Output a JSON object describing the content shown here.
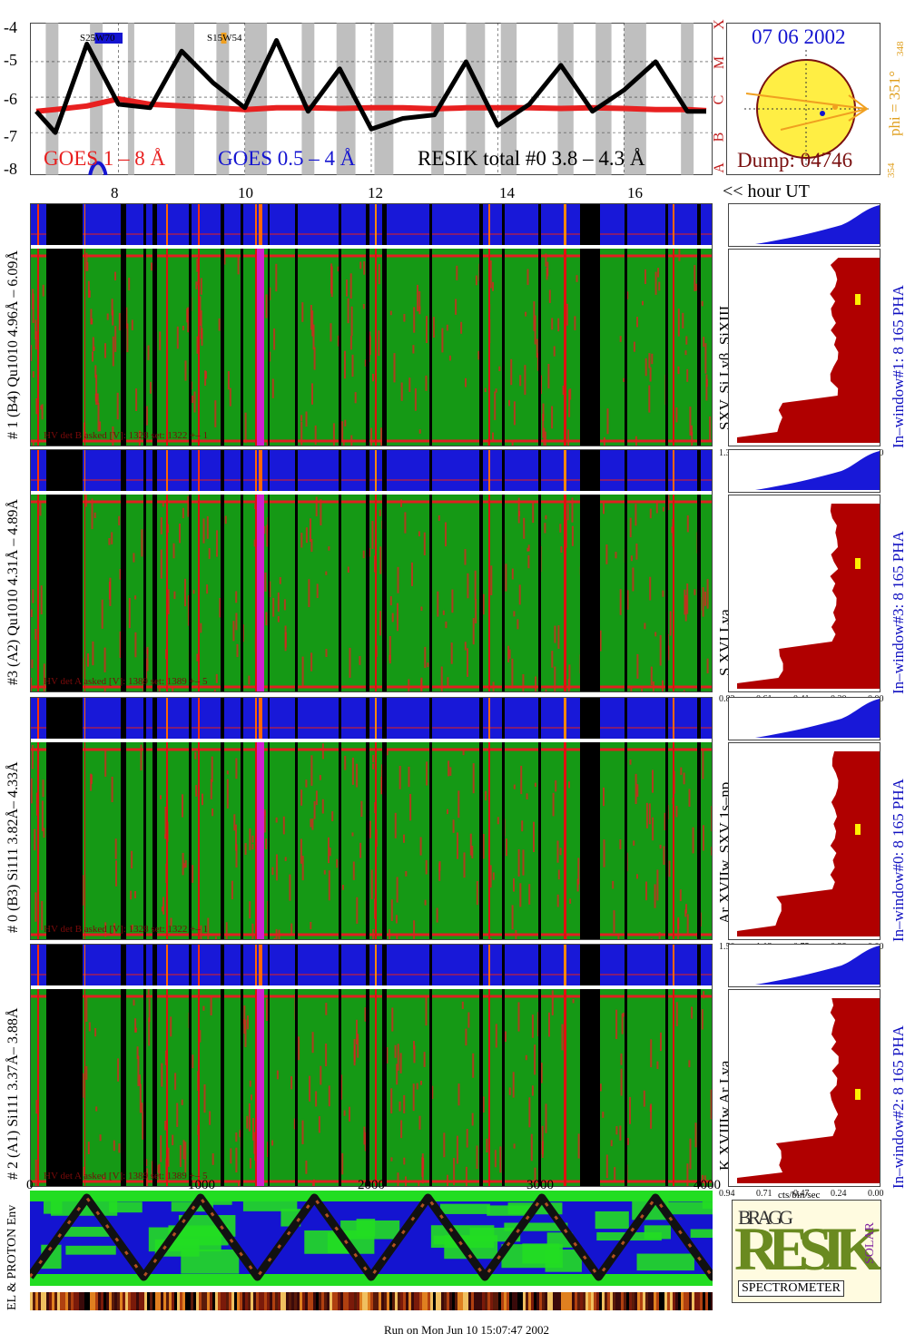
{
  "goes": {
    "yticks": [
      "-4",
      "-5",
      "-6",
      "-7",
      "-8"
    ],
    "classes": [
      "X",
      "M",
      "C",
      "B",
      "A"
    ],
    "xticks": [
      "8",
      "10",
      "12",
      "14",
      "16"
    ],
    "xlabel": "<< hour UT",
    "legend_goes1": "GOES 1 – 8 Å",
    "legend_goes2": "GOES 0.5 – 4 Å",
    "legend_resik": "RESIK total #0  3.8 – 4.3 Å",
    "region1": "S25W70",
    "region2": "S15W54"
  },
  "sun": {
    "date": "07 06 2002",
    "phi": "phi = 351°",
    "phi_sup": "348",
    "phi_sub": "354",
    "dump": "Dump: 04746"
  },
  "channels": [
    {
      "left_label": "# 1 (B4) Qu1010 4.96Å – 6.09Å",
      "line_label": "SXV, Si Lyβ, SiXIII",
      "right_label": "In–window#1:   8 165  PHA",
      "hv": "HV det B asked [V]:   1328  set:   1322   +–      1",
      "pha_ticks": [
        "1.32",
        "0.99",
        "0.66",
        "0.33",
        "0.00"
      ]
    },
    {
      "left_label": "#3 (A2) Qu1010  4.31Å – 4.89Å",
      "line_label": "S XVI Lya",
      "right_label": "In–window#3:   8 165 PHA",
      "hv": "HV det A asked [V]:   1389  set:   1389   +–      5",
      "pha_ticks": [
        "0.82",
        "0.61",
        "0.41",
        "0.20",
        "0.00"
      ]
    },
    {
      "left_label": "# 0 (B3) Si111  3.82Å– 4.33Å",
      "line_label": "Ar XVIIw,  SXV 1s–np",
      "right_label": "In–window#0:   8 165  PHA",
      "hv": "HV det B asked [V]:   1328  set:   1322   +–      1",
      "pha_ticks": [
        "1.50",
        "1.13",
        "0.75",
        "0.38",
        "0.00"
      ]
    },
    {
      "left_label": "# 2 (A1) Si111  3.37Å– 3.88Å",
      "line_label": "K XVIIIw  Ar Lya",
      "right_label": "In–window#2:   8 165  PHA",
      "hv": "HV det A asked [V]:   1389  set:   1389   +–      5",
      "pha_ticks": [
        "0.94",
        "0.71",
        "0.47",
        "0.24",
        "0.00"
      ]
    }
  ],
  "bottom_axis": {
    "ticks": [
      "0",
      "1000",
      "2000",
      "3000",
      "4000"
    ],
    "pha_unit": "cts/bin/sec"
  },
  "env_label": "EL & PROTON Env",
  "logo": {
    "word": "RESIK",
    "sub": "SPECTROMETER",
    "bragg": "BRAGG",
    "solar": "SOLAR"
  },
  "footer": "Run on Mon Jun 10 15:07:47 2002",
  "colors": {
    "goes1": "#e82020",
    "goes2": "#1414d0",
    "resik": "#000000",
    "sun_fill": "#ffee44",
    "pha_dark": "#b00000",
    "pha_blue": "#1818d8"
  },
  "chart_data": {
    "type": "line",
    "title": "",
    "xlabel": "<< hour UT",
    "ylabel": "",
    "xlim": [
      6.6,
      17.4
    ],
    "ylim": [
      -8.2,
      -3.9
    ],
    "x": [
      6.7,
      7.0,
      7.5,
      8.0,
      8.5,
      9.0,
      9.5,
      10.0,
      10.5,
      11.0,
      11.5,
      12.0,
      12.5,
      13.0,
      13.5,
      14.0,
      14.5,
      15.0,
      15.5,
      16.0,
      16.5,
      17.0,
      17.3
    ],
    "series": [
      {
        "name": "GOES 1 – 8 Å",
        "values": [
          -6.4,
          -6.35,
          -6.25,
          -6.05,
          -6.2,
          -6.25,
          -6.3,
          -6.35,
          -6.3,
          -6.3,
          -6.32,
          -6.3,
          -6.3,
          -6.33,
          -6.3,
          -6.3,
          -6.3,
          -6.32,
          -6.3,
          -6.32,
          -6.35,
          -6.35,
          -6.38
        ]
      },
      {
        "name": "RESIK total #0  3.8 – 4.3 Å",
        "values": [
          -6.4,
          -7.0,
          -4.5,
          -6.2,
          -6.3,
          -4.7,
          -5.6,
          -6.3,
          -4.4,
          -6.4,
          -5.2,
          -6.9,
          -6.6,
          -6.5,
          -5.0,
          -6.8,
          -6.2,
          -5.1,
          -6.4,
          -5.8,
          -5.0,
          -6.4,
          -6.4
        ]
      }
    ]
  }
}
